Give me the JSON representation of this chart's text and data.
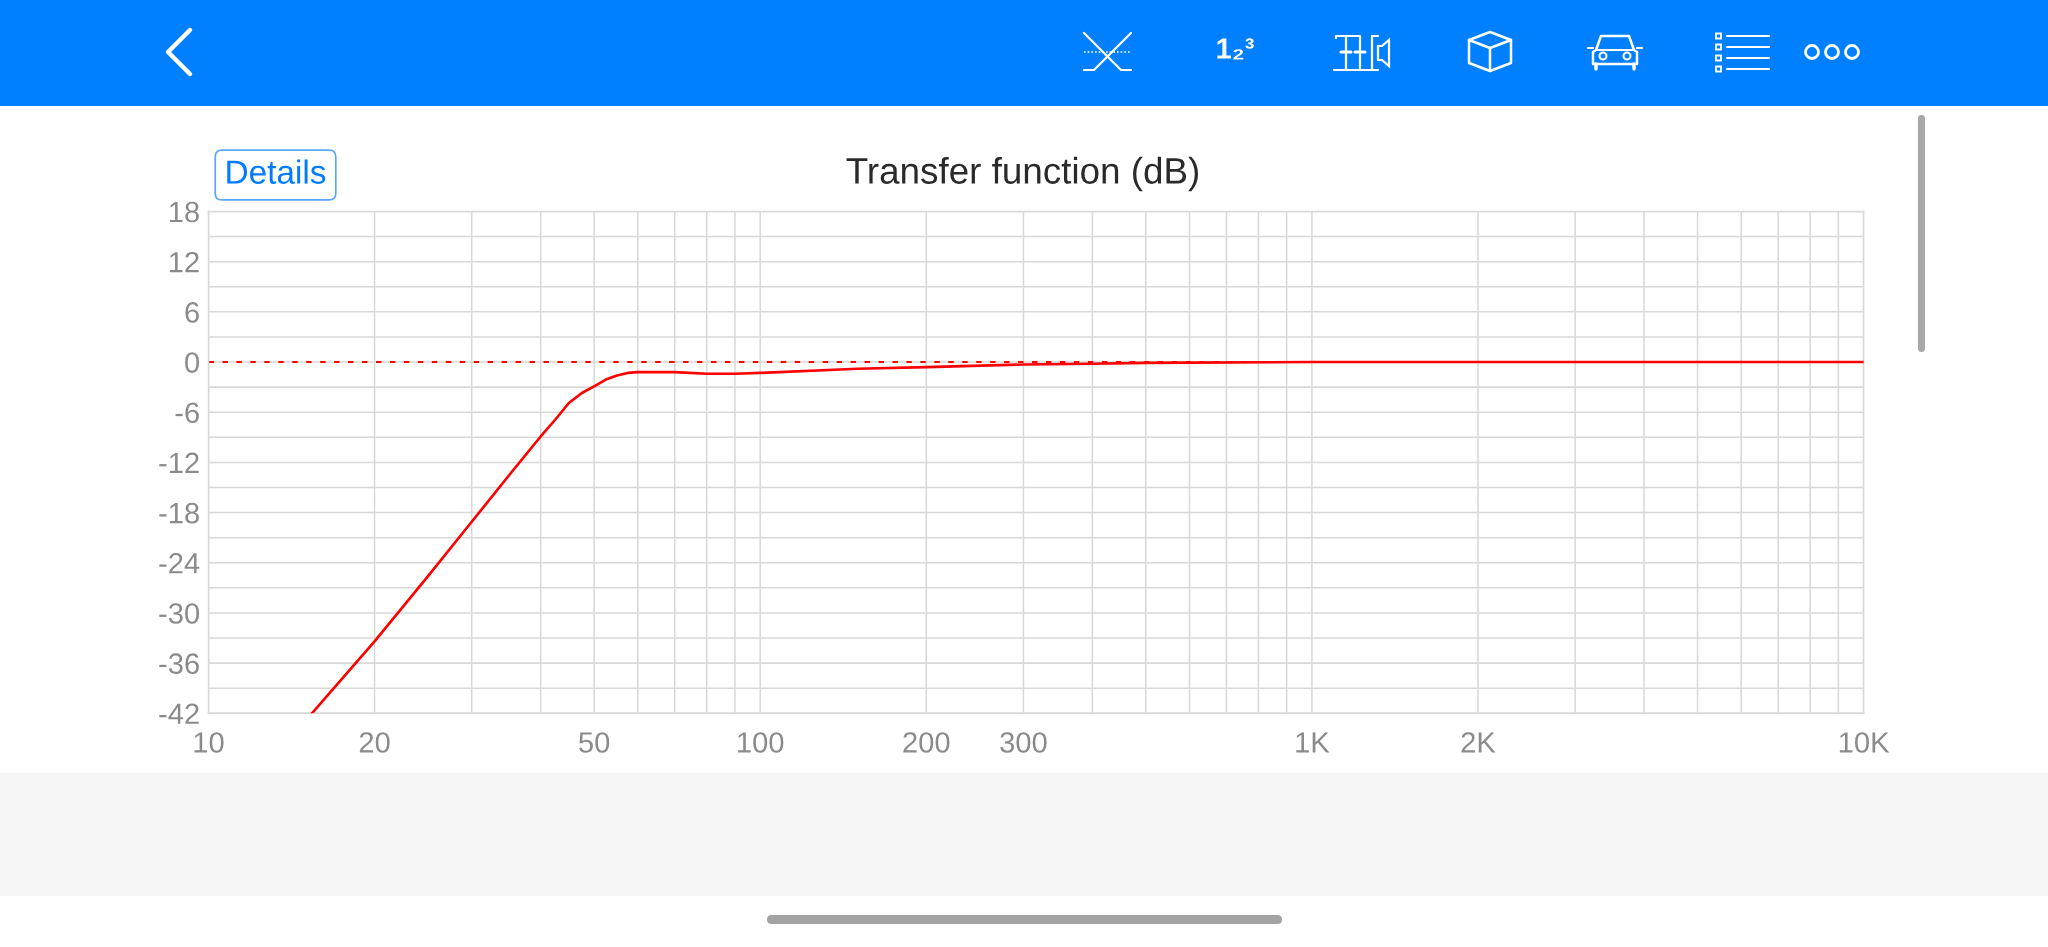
{
  "chart_data": {
    "type": "line",
    "title": "Transfer function (dB)",
    "annotations": [
      "Details",
      "1₂³"
    ],
    "x": [
      15.4,
      20,
      25,
      30,
      35,
      40,
      42.5,
      45,
      47.5,
      50,
      52.5,
      55,
      57.5,
      60,
      65,
      70,
      80,
      90,
      100,
      150,
      200,
      300,
      400,
      500,
      1000,
      2000,
      10000
    ],
    "series": [
      {
        "color": "#ff0000",
        "values": [
          -42,
          -33.4,
          -25.6,
          -19.1,
          -13.6,
          -8.9,
          -6.9,
          -4.9,
          -3.7,
          -2.9,
          -2.1,
          -1.6,
          -1.3,
          -1.2,
          -1.2,
          -1.2,
          -1.4,
          -1.4,
          -1.3,
          -0.8,
          -0.6,
          -0.3,
          -0.2,
          -0.1,
          0,
          0,
          0
        ]
      }
    ],
    "log": "x",
    "xlim": [
      10,
      10000
    ],
    "xticks": [
      10,
      20,
      {
        "value": 30,
        "label": null
      },
      {
        "value": 40,
        "label": null
      },
      50,
      {
        "value": 60,
        "label": null
      },
      {
        "value": 70,
        "label": null
      },
      {
        "value": 80,
        "label": null
      },
      {
        "value": 90,
        "label": null
      },
      100,
      200,
      300,
      {
        "value": 400,
        "label": null
      },
      {
        "value": 500,
        "label": null
      },
      {
        "value": 600,
        "label": null
      },
      {
        "value": 700,
        "label": null
      },
      {
        "value": 800,
        "label": null
      },
      {
        "value": 900,
        "label": null
      },
      {
        "value": 1000,
        "label": "1K"
      },
      {
        "value": 2000,
        "label": "2K"
      },
      {
        "value": 3000,
        "label": null
      },
      {
        "value": 4000,
        "label": null
      },
      {
        "value": 5000,
        "label": null
      },
      {
        "value": 6000,
        "label": null
      },
      {
        "value": 7000,
        "label": null
      },
      {
        "value": 8000,
        "label": null
      },
      {
        "value": 9000,
        "label": null
      },
      {
        "value": 10000,
        "label": "10K"
      }
    ],
    "ylim": [
      -42,
      18
    ],
    "yticks": [
      -42,
      {
        "value": -39,
        "label": null
      },
      -36,
      {
        "value": -33,
        "label": null
      },
      -30,
      {
        "value": -27,
        "label": null
      },
      -24,
      {
        "value": -21,
        "label": null
      },
      -18,
      {
        "value": -15,
        "label": null
      },
      -12,
      {
        "value": -9,
        "label": null
      },
      -6,
      {
        "value": -3,
        "label": null
      },
      0,
      {
        "value": 3,
        "label": null
      },
      6,
      {
        "value": 9,
        "label": null
      },
      12,
      {
        "value": 15,
        "label": null
      },
      18
    ],
    "grid": true,
    "ref_lines": [
      {
        "axis": "y",
        "value": 0,
        "color": "#ff0000",
        "line_style": "dashed"
      }
    ],
    "marker": "none",
    "line_style": "solid"
  }
}
